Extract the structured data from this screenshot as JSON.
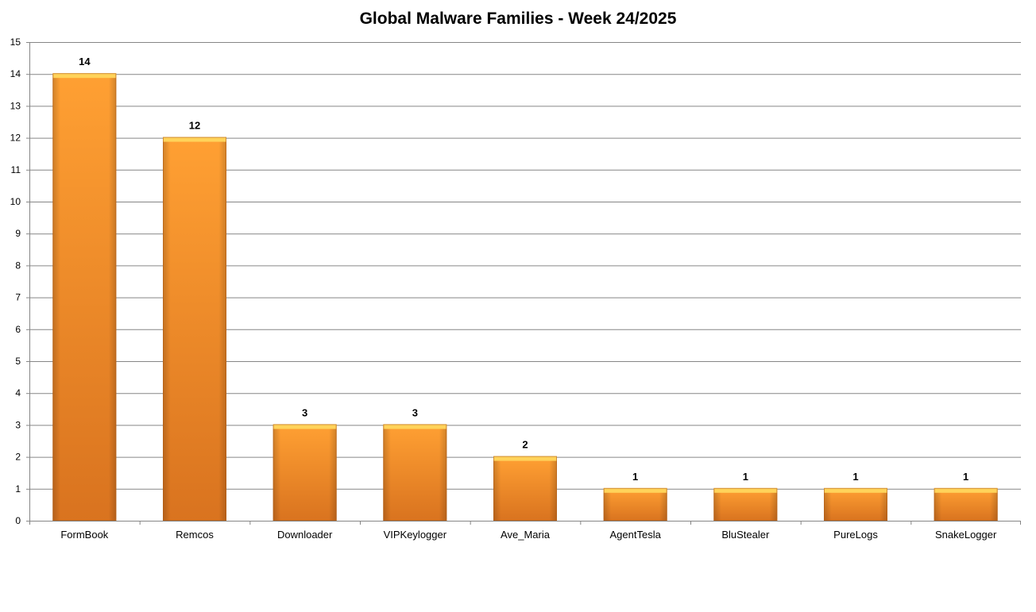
{
  "chart_data": {
    "type": "bar",
    "title": "Global Malware Families - Week 24/2025",
    "xlabel": "",
    "ylabel": "",
    "categories": [
      "FormBook",
      "Remcos",
      "Downloader",
      "VIPKeylogger",
      "Ave_Maria",
      "AgentTesla",
      "BluStealer",
      "PureLogs",
      "SnakeLogger"
    ],
    "values": [
      14,
      12,
      3,
      3,
      2,
      1,
      1,
      1,
      1
    ],
    "ylim": [
      0,
      15
    ],
    "yticks": [
      0,
      1,
      2,
      3,
      4,
      5,
      6,
      7,
      8,
      9,
      10,
      11,
      12,
      13,
      14,
      15
    ],
    "grid": true,
    "legend": "none",
    "data_labels": true,
    "colors": {
      "bar_light": "#ffa033",
      "bar_dark": "#d9731f",
      "bar_top": "#ffd35a",
      "grid": "#868686",
      "axis": "#868686"
    }
  }
}
